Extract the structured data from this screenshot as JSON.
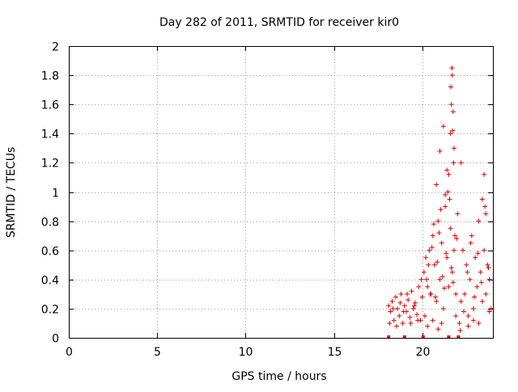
{
  "chart_data": {
    "type": "scatter",
    "title": "Day 282 of 2011, SRMTID for receiver kir0",
    "xlabel": "GPS time / hours",
    "ylabel": "SRMTID / TECUs",
    "xlim": [
      0,
      24
    ],
    "ylim": [
      0,
      2
    ],
    "x_ticks": [
      0,
      5,
      10,
      15,
      20
    ],
    "x_tick_labels": [
      "0",
      "5",
      "10",
      "15",
      "20"
    ],
    "y_ticks": [
      0,
      0.2,
      0.4,
      0.6,
      0.8,
      1,
      1.2,
      1.4,
      1.6,
      1.8,
      2
    ],
    "y_tick_labels": [
      "0",
      "0.2",
      "0.4",
      "0.6",
      "0.8",
      "1",
      "1.2",
      "1.4",
      "1.6",
      "1.8",
      "2"
    ],
    "grid": true,
    "marker": "+",
    "color": "#e00000",
    "series": [
      {
        "name": "SRMTID",
        "x": [
          18.1,
          18.2,
          18.3,
          18.4,
          18.5,
          18.6,
          18.7,
          18.8,
          18.9,
          19.0,
          19.1,
          19.2,
          19.3,
          19.4,
          19.5,
          19.6,
          19.7,
          19.8,
          19.9,
          20.0,
          18.15,
          18.35,
          18.55,
          18.75,
          18.95,
          19.15,
          19.35,
          19.55,
          19.75,
          19.95,
          20.1,
          20.2,
          20.3,
          20.4,
          20.5,
          20.6,
          20.7,
          20.8,
          20.9,
          21.0,
          21.1,
          21.2,
          21.3,
          21.4,
          21.5,
          21.6,
          21.7,
          21.8,
          21.9,
          22.0,
          20.15,
          20.35,
          20.55,
          20.75,
          20.95,
          21.15,
          21.35,
          21.55,
          21.75,
          21.95,
          20.25,
          20.45,
          20.65,
          20.85,
          21.05,
          21.25,
          21.45,
          21.65,
          21.85,
          22.1,
          22.2,
          22.3,
          22.4,
          22.5,
          22.6,
          22.7,
          22.8,
          22.9,
          23.0,
          23.1,
          23.2,
          23.3,
          23.4,
          23.5,
          23.6,
          23.7,
          23.8,
          23.9,
          22.15,
          22.35,
          22.55,
          22.75,
          22.95,
          23.15,
          23.35,
          23.55,
          23.75,
          21.6,
          21.65,
          21.7,
          21.75,
          21.8,
          21.62,
          21.68,
          21.72,
          21.78,
          21.0,
          21.2,
          21.4,
          20.8,
          21.3,
          21.5,
          22.2,
          23.4,
          23.5,
          23.6,
          20.3,
          20.6,
          20.9,
          21.1,
          21.9,
          22.6,
          22.9,
          23.2,
          23.8
        ],
        "y": [
          0.22,
          0.18,
          0.25,
          0.12,
          0.28,
          0.2,
          0.15,
          0.3,
          0.1,
          0.22,
          0.18,
          0.26,
          0.14,
          0.32,
          0.2,
          0.24,
          0.16,
          0.35,
          0.12,
          0.28,
          0.1,
          0.2,
          0.08,
          0.24,
          0.18,
          0.3,
          0.1,
          0.22,
          0.12,
          0.4,
          0.45,
          0.55,
          0.35,
          0.6,
          0.3,
          0.7,
          0.5,
          0.25,
          0.8,
          0.4,
          0.65,
          0.2,
          0.9,
          0.55,
          0.35,
          0.75,
          0.45,
          0.6,
          0.3,
          0.85,
          0.15,
          0.5,
          0.62,
          0.28,
          0.72,
          0.42,
          0.58,
          0.95,
          0.38,
          0.68,
          0.4,
          0.3,
          0.78,
          0.52,
          0.88,
          0.34,
          1.0,
          0.48,
          0.7,
          0.1,
          0.25,
          0.6,
          0.3,
          0.5,
          0.15,
          0.4,
          0.7,
          0.2,
          0.55,
          0.35,
          0.8,
          0.45,
          0.25,
          0.6,
          0.3,
          0.5,
          0.4,
          0.2,
          0.05,
          0.18,
          0.45,
          0.65,
          0.28,
          0.58,
          0.38,
          0.9,
          0.48,
          1.4,
          1.6,
          1.8,
          1.55,
          1.3,
          1.72,
          1.85,
          1.42,
          1.2,
          1.28,
          1.45,
          1.15,
          1.05,
          0.98,
          1.12,
          1.2,
          0.95,
          1.12,
          0.85,
          0.08,
          0.12,
          0.06,
          0.1,
          0.15,
          0.08,
          0.12,
          0.1,
          0.18
        ]
      }
    ],
    "baseline_markers_x": [
      18.1,
      19.0,
      20.05,
      21.5,
      22.05
    ]
  }
}
